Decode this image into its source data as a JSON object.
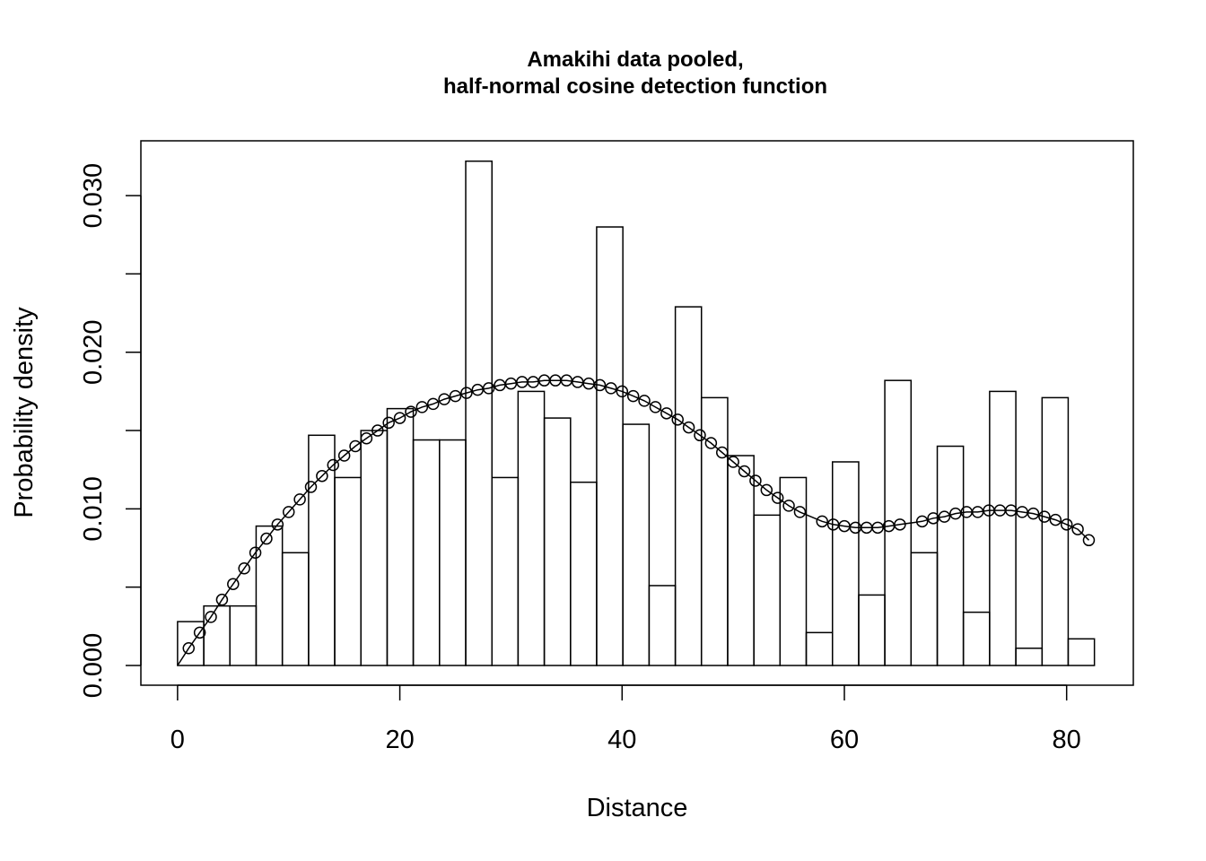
{
  "chart_data": {
    "type": "bar",
    "title_line1": "Amakihi data pooled,",
    "title_line2": "half-normal cosine detection function",
    "xlabel": "Distance",
    "ylabel": "Probability density",
    "xlim": [
      -3.3,
      86
    ],
    "ylim": [
      -0.00126,
      0.0335
    ],
    "x_ticks": [
      0,
      20,
      40,
      60,
      80
    ],
    "x_tick_labels": [
      "0",
      "20",
      "40",
      "60",
      "80"
    ],
    "y_ticks": [
      0,
      0.005,
      0.01,
      0.015,
      0.02,
      0.025,
      0.03
    ],
    "y_tick_labels": [
      "0.000",
      "",
      "0.010",
      "",
      "0.020",
      "",
      "0.030"
    ],
    "histogram": {
      "bin_edges": [
        0,
        2.36,
        4.71,
        7.07,
        9.43,
        11.79,
        14.14,
        16.5,
        18.86,
        21.21,
        23.57,
        25.93,
        28.29,
        30.64,
        33.0,
        35.36,
        37.71,
        40.07,
        42.43,
        44.79,
        47.14,
        49.5,
        51.86,
        54.21,
        56.57,
        58.93,
        61.29,
        63.64,
        66.0,
        68.36,
        70.71,
        73.07,
        75.43,
        77.79,
        80.14,
        82.5
      ],
      "densities": [
        0.0028,
        0.0038,
        0.0038,
        0.0089,
        0.0072,
        0.0147,
        0.012,
        0.015,
        0.0164,
        0.0144,
        0.0144,
        0.0322,
        0.012,
        0.0175,
        0.0158,
        0.0117,
        0.028,
        0.0154,
        0.0051,
        0.0229,
        0.0171,
        0.0134,
        0.0096,
        0.012,
        0.0021,
        0.013,
        0.0045,
        0.0182,
        0.0072,
        0.014,
        0.0034,
        0.0175,
        0.0011,
        0.0171,
        0.0017
      ]
    },
    "fitted_curve": {
      "x": [
        0,
        1,
        2,
        3,
        4,
        5,
        6,
        7,
        8,
        9,
        10,
        11,
        12,
        13,
        14,
        15,
        16,
        17,
        18,
        19,
        20,
        21,
        22,
        23,
        24,
        25,
        26,
        27,
        28,
        29,
        30,
        31,
        32,
        33,
        34,
        35,
        36,
        37,
        38,
        39,
        40,
        41,
        42,
        43,
        44,
        45,
        46,
        47,
        48,
        49,
        50,
        51,
        52,
        53,
        54,
        55,
        56,
        58,
        59,
        60,
        61,
        62,
        63,
        64,
        65,
        67,
        68,
        69,
        70,
        71,
        72,
        73,
        74,
        75,
        76,
        77,
        78,
        79,
        80,
        81,
        82
      ],
      "y": [
        0.0,
        0.0011,
        0.0021,
        0.0031,
        0.0042,
        0.0052,
        0.0062,
        0.0072,
        0.0081,
        0.009,
        0.0098,
        0.0106,
        0.0114,
        0.0121,
        0.0128,
        0.0134,
        0.014,
        0.0145,
        0.015,
        0.0155,
        0.0158,
        0.0162,
        0.0165,
        0.0167,
        0.017,
        0.0172,
        0.0174,
        0.0176,
        0.0177,
        0.0179,
        0.018,
        0.0181,
        0.0181,
        0.0182,
        0.0182,
        0.0182,
        0.0181,
        0.018,
        0.0179,
        0.0177,
        0.0175,
        0.0172,
        0.0169,
        0.0165,
        0.0161,
        0.0157,
        0.0152,
        0.0147,
        0.0142,
        0.0136,
        0.013,
        0.0124,
        0.0118,
        0.0112,
        0.0107,
        0.0102,
        0.0098,
        0.0092,
        0.009,
        0.0089,
        0.0088,
        0.0088,
        0.0088,
        0.0089,
        0.009,
        0.0092,
        0.0094,
        0.0095,
        0.0097,
        0.0098,
        0.0098,
        0.0099,
        0.0099,
        0.0099,
        0.0098,
        0.0097,
        0.0095,
        0.0093,
        0.009,
        0.0087,
        0.008
      ]
    },
    "grid": false,
    "legend": "none"
  }
}
